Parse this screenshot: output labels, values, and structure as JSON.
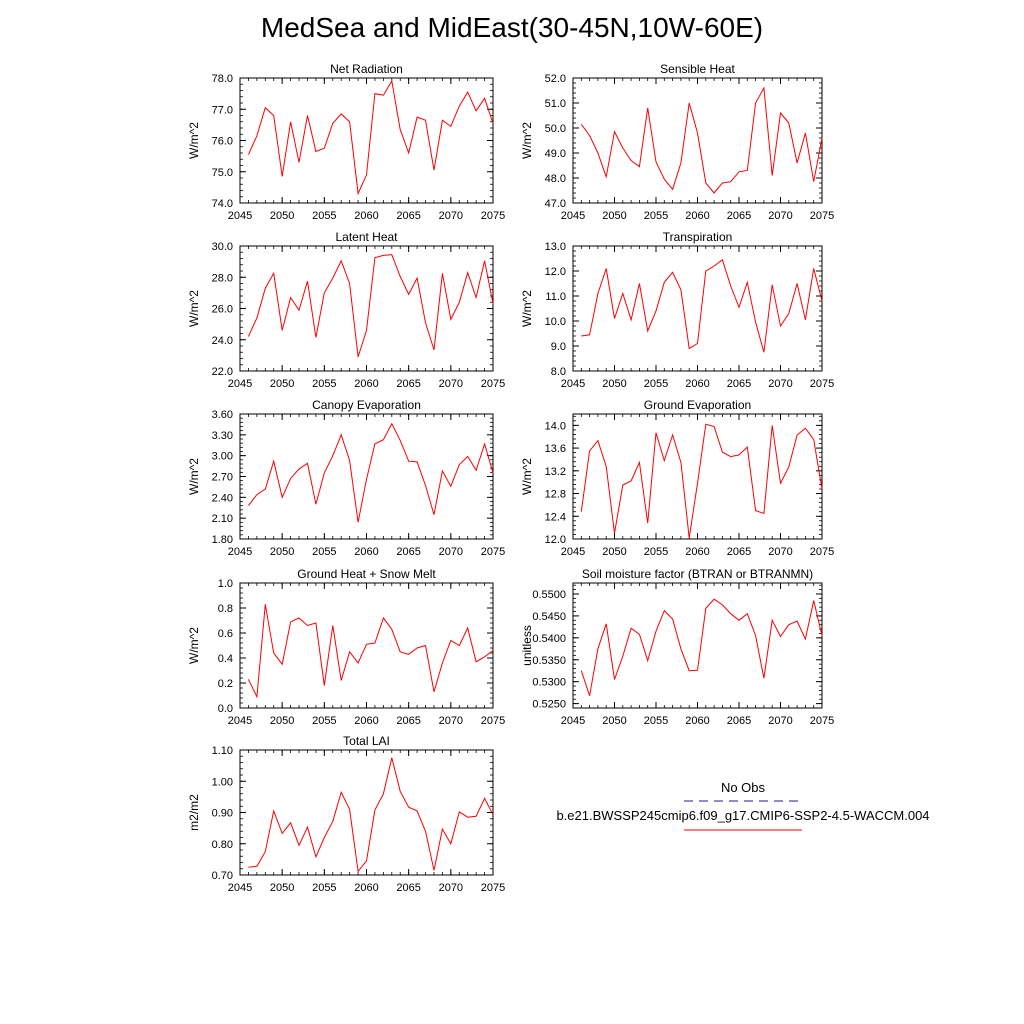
{
  "title": "MedSea and MidEast(30-45N,10W-60E)",
  "colors": {
    "series": "#ff0000",
    "obs": "#1a1a8c",
    "axis": "#000000"
  },
  "legend": {
    "obs_label": "No Obs",
    "case_label": "b.e21.BWSSP245cmip6.f09_g17.CMIP6-SSP2-4.5-WACCM.004"
  },
  "chart_data": [
    {
      "type": "line",
      "title": "Net Radiation",
      "ylabel": "W/m^2",
      "xlabel": "",
      "xlim": [
        2045,
        2075
      ],
      "ylim": [
        74.0,
        78.0
      ],
      "xticks": [
        "2045",
        "2050",
        "2055",
        "2060",
        "2065",
        "2070",
        "2075"
      ],
      "yticks": [
        "74.0",
        "75.0",
        "76.0",
        "77.0",
        "78.0"
      ],
      "x": [
        2046,
        2047,
        2048,
        2049,
        2050,
        2051,
        2052,
        2053,
        2054,
        2055,
        2056,
        2057,
        2058,
        2059,
        2060,
        2061,
        2062,
        2063,
        2064,
        2065,
        2066,
        2067,
        2068,
        2069,
        2070,
        2071,
        2072,
        2073,
        2074,
        2075
      ],
      "series": [
        {
          "values": [
            75.55,
            76.15,
            77.05,
            76.8,
            74.85,
            76.6,
            75.3,
            76.8,
            75.65,
            75.75,
            76.55,
            76.85,
            76.6,
            74.3,
            74.9,
            77.5,
            77.45,
            77.9,
            76.35,
            75.6,
            76.75,
            76.65,
            75.05,
            76.65,
            76.45,
            77.1,
            77.55,
            76.95,
            77.35,
            76.55
          ]
        }
      ]
    },
    {
      "type": "line",
      "title": "Sensible Heat",
      "ylabel": "W/m^2",
      "xlabel": "",
      "xlim": [
        2045,
        2075
      ],
      "ylim": [
        47.0,
        52.0
      ],
      "xticks": [
        "2045",
        "2050",
        "2055",
        "2060",
        "2065",
        "2070",
        "2075"
      ],
      "yticks": [
        "47.0",
        "48.0",
        "49.0",
        "50.0",
        "51.0",
        "52.0"
      ],
      "x": [
        2046,
        2047,
        2048,
        2049,
        2050,
        2051,
        2052,
        2053,
        2054,
        2055,
        2056,
        2057,
        2058,
        2059,
        2060,
        2061,
        2062,
        2063,
        2064,
        2065,
        2066,
        2067,
        2068,
        2069,
        2070,
        2071,
        2072,
        2073,
        2074,
        2075
      ],
      "series": [
        {
          "values": [
            50.15,
            49.7,
            49.0,
            48.05,
            49.85,
            49.2,
            48.7,
            48.45,
            50.8,
            48.65,
            47.95,
            47.55,
            48.6,
            51.0,
            49.8,
            47.8,
            47.4,
            47.8,
            47.85,
            48.25,
            48.3,
            51.0,
            51.6,
            48.1,
            50.6,
            50.2,
            48.6,
            49.8,
            47.85,
            49.6
          ]
        }
      ]
    },
    {
      "type": "line",
      "title": "Latent Heat",
      "ylabel": "W/m^2",
      "xlabel": "",
      "xlim": [
        2045,
        2075
      ],
      "ylim": [
        22.0,
        30.0
      ],
      "xticks": [
        "2045",
        "2050",
        "2055",
        "2060",
        "2065",
        "2070",
        "2075"
      ],
      "yticks": [
        "22.0",
        "24.0",
        "26.0",
        "28.0",
        "30.0"
      ],
      "x": [
        2046,
        2047,
        2048,
        2049,
        2050,
        2051,
        2052,
        2053,
        2054,
        2055,
        2056,
        2057,
        2058,
        2059,
        2060,
        2061,
        2062,
        2063,
        2064,
        2065,
        2066,
        2067,
        2068,
        2069,
        2070,
        2071,
        2072,
        2073,
        2074,
        2075
      ],
      "series": [
        {
          "values": [
            24.2,
            25.4,
            27.3,
            28.25,
            24.6,
            26.7,
            25.9,
            27.75,
            24.15,
            27.0,
            27.95,
            29.05,
            27.6,
            22.9,
            24.6,
            29.25,
            29.4,
            29.45,
            28.05,
            26.9,
            27.95,
            25.1,
            23.35,
            28.25,
            25.3,
            26.4,
            28.3,
            26.7,
            29.05,
            26.3
          ]
        }
      ]
    },
    {
      "type": "line",
      "title": "Transpiration",
      "ylabel": "W/m^2",
      "xlabel": "",
      "xlim": [
        2045,
        2075
      ],
      "ylim": [
        8.0,
        13.0
      ],
      "xticks": [
        "2045",
        "2050",
        "2055",
        "2060",
        "2065",
        "2070",
        "2075"
      ],
      "yticks": [
        "8.0",
        "9.0",
        "10.0",
        "11.0",
        "12.0",
        "13.0"
      ],
      "x": [
        2046,
        2047,
        2048,
        2049,
        2050,
        2051,
        2052,
        2053,
        2054,
        2055,
        2056,
        2057,
        2058,
        2059,
        2060,
        2061,
        2062,
        2063,
        2064,
        2065,
        2066,
        2067,
        2068,
        2069,
        2070,
        2071,
        2072,
        2073,
        2074,
        2075
      ],
      "series": [
        {
          "values": [
            9.4,
            9.45,
            11.1,
            12.1,
            10.1,
            11.1,
            10.05,
            11.5,
            9.6,
            10.4,
            11.55,
            11.95,
            11.25,
            8.9,
            9.1,
            12.0,
            12.2,
            12.45,
            11.4,
            10.55,
            11.55,
            9.95,
            8.75,
            11.45,
            9.8,
            10.3,
            11.5,
            10.05,
            12.1,
            10.8
          ]
        }
      ]
    },
    {
      "type": "line",
      "title": "Canopy Evaporation",
      "ylabel": "W/m^2",
      "xlabel": "",
      "xlim": [
        2045,
        2075
      ],
      "ylim": [
        1.8,
        3.6
      ],
      "xticks": [
        "2045",
        "2050",
        "2055",
        "2060",
        "2065",
        "2070",
        "2075"
      ],
      "yticks": [
        "1.80",
        "2.10",
        "2.40",
        "2.70",
        "3.00",
        "3.30",
        "3.60"
      ],
      "x": [
        2046,
        2047,
        2048,
        2049,
        2050,
        2051,
        2052,
        2053,
        2054,
        2055,
        2056,
        2057,
        2058,
        2059,
        2060,
        2061,
        2062,
        2063,
        2064,
        2065,
        2066,
        2067,
        2068,
        2069,
        2070,
        2071,
        2072,
        2073,
        2074,
        2075
      ],
      "series": [
        {
          "values": [
            2.28,
            2.44,
            2.52,
            2.92,
            2.4,
            2.67,
            2.81,
            2.89,
            2.3,
            2.75,
            3.0,
            3.3,
            2.93,
            2.04,
            2.66,
            3.17,
            3.23,
            3.46,
            3.22,
            2.92,
            2.91,
            2.57,
            2.15,
            2.78,
            2.56,
            2.87,
            2.99,
            2.79,
            3.17,
            2.75
          ]
        }
      ]
    },
    {
      "type": "line",
      "title": "Ground Evaporation",
      "ylabel": "W/m^2",
      "xlabel": "",
      "xlim": [
        2045,
        2075
      ],
      "ylim": [
        12.0,
        14.2
      ],
      "xticks": [
        "2045",
        "2050",
        "2055",
        "2060",
        "2065",
        "2070",
        "2075"
      ],
      "yticks": [
        "12.0",
        "12.4",
        "12.8",
        "13.2",
        "13.6",
        "14.0"
      ],
      "x": [
        2046,
        2047,
        2048,
        2049,
        2050,
        2051,
        2052,
        2053,
        2054,
        2055,
        2056,
        2057,
        2058,
        2059,
        2060,
        2061,
        2062,
        2063,
        2064,
        2065,
        2066,
        2067,
        2068,
        2069,
        2070,
        2071,
        2072,
        2073,
        2074,
        2075
      ],
      "series": [
        {
          "values": [
            12.48,
            13.55,
            13.73,
            13.28,
            12.1,
            12.95,
            13.02,
            13.35,
            12.28,
            13.87,
            13.38,
            13.83,
            13.35,
            12.02,
            12.98,
            14.02,
            13.98,
            13.53,
            13.45,
            13.48,
            13.62,
            12.5,
            12.45,
            14.0,
            12.98,
            13.27,
            13.83,
            13.95,
            13.75,
            12.88
          ]
        }
      ]
    },
    {
      "type": "line",
      "title": "Ground Heat + Snow Melt",
      "ylabel": "W/m^2",
      "xlabel": "",
      "xlim": [
        2045,
        2075
      ],
      "ylim": [
        0.0,
        1.0
      ],
      "xticks": [
        "2045",
        "2050",
        "2055",
        "2060",
        "2065",
        "2070",
        "2075"
      ],
      "yticks": [
        "0.0",
        "0.2",
        "0.4",
        "0.6",
        "0.8",
        "1.0"
      ],
      "x": [
        2046,
        2047,
        2048,
        2049,
        2050,
        2051,
        2052,
        2053,
        2054,
        2055,
        2056,
        2057,
        2058,
        2059,
        2060,
        2061,
        2062,
        2063,
        2064,
        2065,
        2066,
        2067,
        2068,
        2069,
        2070,
        2071,
        2072,
        2073,
        2074,
        2075
      ],
      "series": [
        {
          "values": [
            0.23,
            0.09,
            0.83,
            0.44,
            0.35,
            0.69,
            0.72,
            0.66,
            0.68,
            0.18,
            0.66,
            0.22,
            0.45,
            0.36,
            0.51,
            0.52,
            0.72,
            0.63,
            0.45,
            0.43,
            0.48,
            0.5,
            0.13,
            0.36,
            0.54,
            0.5,
            0.64,
            0.37,
            0.41,
            0.46
          ]
        }
      ]
    },
    {
      "type": "line",
      "title": "Soil moisture factor (BTRAN or BTRANMN)",
      "ylabel": "unitless",
      "xlabel": "",
      "xlim": [
        2045,
        2075
      ],
      "ylim": [
        0.524,
        0.5525
      ],
      "xticks": [
        "2045",
        "2050",
        "2055",
        "2060",
        "2065",
        "2070",
        "2075"
      ],
      "yticks": [
        "0.5250",
        "0.5300",
        "0.5350",
        "0.5400",
        "0.5450",
        "0.5500"
      ],
      "x": [
        2046,
        2047,
        2048,
        2049,
        2050,
        2051,
        2052,
        2053,
        2054,
        2055,
        2056,
        2057,
        2058,
        2059,
        2060,
        2061,
        2062,
        2063,
        2064,
        2065,
        2066,
        2067,
        2068,
        2069,
        2070,
        2071,
        2072,
        2073,
        2074,
        2075
      ],
      "series": [
        {
          "values": [
            0.5325,
            0.5268,
            0.5375,
            0.5432,
            0.5305,
            0.5358,
            0.5422,
            0.5408,
            0.5348,
            0.5415,
            0.5462,
            0.5443,
            0.5375,
            0.5325,
            0.5326,
            0.5467,
            0.5488,
            0.5475,
            0.5455,
            0.544,
            0.5455,
            0.5405,
            0.5308,
            0.544,
            0.5403,
            0.543,
            0.5438,
            0.5397,
            0.5485,
            0.5405
          ]
        }
      ]
    },
    {
      "type": "line",
      "title": "Total LAI",
      "ylabel": "m2/m2",
      "xlabel": "",
      "xlim": [
        2045,
        2075
      ],
      "ylim": [
        0.7,
        1.1
      ],
      "xticks": [
        "2045",
        "2050",
        "2055",
        "2060",
        "2065",
        "2070",
        "2075"
      ],
      "yticks": [
        "0.70",
        "0.80",
        "0.90",
        "1.00",
        "1.10"
      ],
      "x": [
        2046,
        2047,
        2048,
        2049,
        2050,
        2051,
        2052,
        2053,
        2054,
        2055,
        2056,
        2057,
        2058,
        2059,
        2060,
        2061,
        2062,
        2063,
        2064,
        2065,
        2066,
        2067,
        2068,
        2069,
        2070,
        2071,
        2072,
        2073,
        2074,
        2075
      ],
      "series": [
        {
          "values": [
            0.725,
            0.728,
            0.775,
            0.905,
            0.833,
            0.867,
            0.795,
            0.853,
            0.758,
            0.82,
            0.872,
            0.965,
            0.91,
            0.712,
            0.745,
            0.908,
            0.96,
            1.075,
            0.968,
            0.917,
            0.905,
            0.84,
            0.715,
            0.847,
            0.8,
            0.902,
            0.885,
            0.888,
            0.945,
            0.893
          ]
        }
      ]
    }
  ]
}
